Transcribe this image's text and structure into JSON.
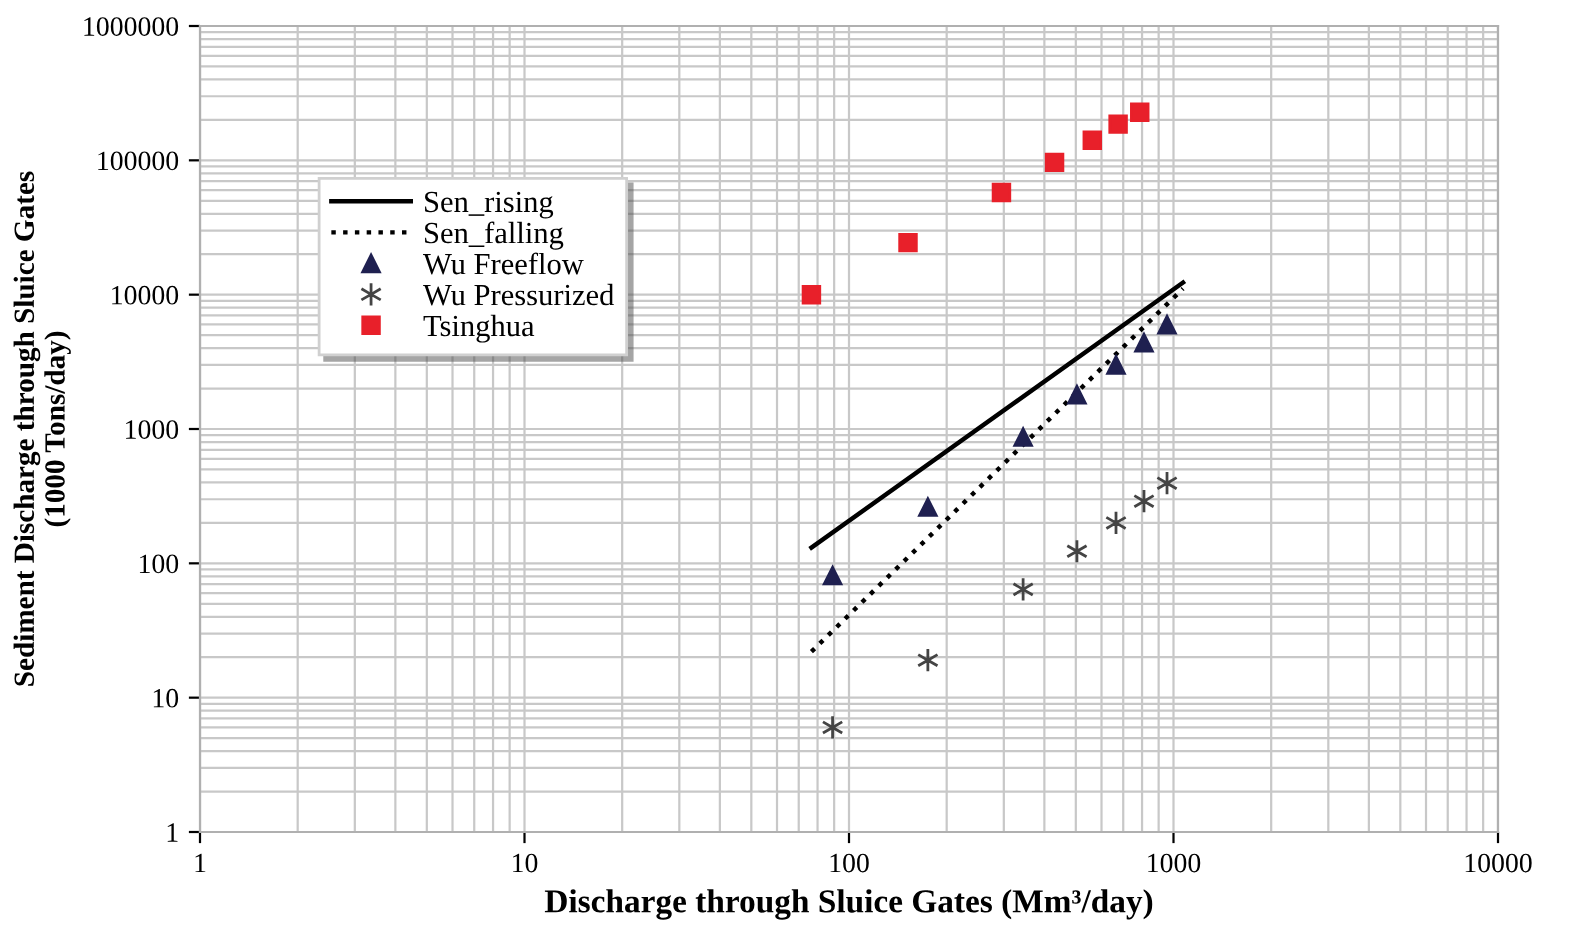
{
  "chart_data": {
    "type": "scatter",
    "xlabel": "Discharge through Sluice Gates (Mm³/day)",
    "ylabel": "Sediment Discharge through Sluice Gates\n(1000 Tons/day)",
    "log": "xy",
    "grid": true,
    "legend": "top left",
    "xlim": [
      1,
      10000
    ],
    "xticks": [
      1,
      10,
      100,
      1000,
      10000
    ],
    "ylim": [
      1,
      1000000
    ],
    "yticks": [
      1,
      10,
      100,
      1000,
      10000,
      100000,
      1000000
    ],
    "series": [
      {
        "name": "Sen_rising",
        "type": "line",
        "line_style": "solid",
        "marker": "none",
        "color": "#000000",
        "x": [
          76.6,
          1070
        ],
        "values": [
          131,
          12300
        ]
      },
      {
        "name": "Sen_falling",
        "type": "line",
        "line_style": "dotted",
        "marker": "none",
        "color": "#000000",
        "x": [
          76.6,
          1070
        ],
        "values": [
          22,
          11100
        ]
      },
      {
        "name": "Wu Freeflow",
        "marker": "triangle",
        "color": "#1f2050",
        "x": [
          89,
          175,
          344,
          504,
          665,
          811,
          955
        ],
        "values": [
          81,
          262,
          870,
          1800,
          3000,
          4390,
          5970
        ]
      },
      {
        "name": "Wu Pressurized",
        "marker": "cross",
        "color": "#444444",
        "x": [
          89,
          175,
          344,
          504,
          665,
          811,
          955
        ],
        "values": [
          6,
          19,
          64,
          123,
          200,
          290,
          395
        ]
      },
      {
        "name": "Tsinghua",
        "marker": "square",
        "color": "#e8202a",
        "x": [
          76.6,
          152,
          295,
          430,
          562,
          675,
          787
        ],
        "values": [
          10000,
          24400,
          57700,
          96600,
          141000,
          186000,
          228000
        ]
      }
    ]
  }
}
